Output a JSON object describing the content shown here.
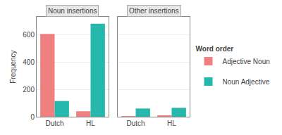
{
  "chart_data": [
    {
      "type": "bar",
      "title": "Noun insertions",
      "categories": [
        "Dutch",
        "HL"
      ],
      "series": [
        {
          "name": "Adjective Noun",
          "color": "#F08080",
          "values": [
            605,
            40
          ]
        },
        {
          "name": "Noun Adjective",
          "color": "#26B8AC",
          "values": [
            115,
            680
          ]
        }
      ],
      "ylabel": "Frequency",
      "ylim": [
        0,
        730
      ],
      "yticks": [
        0,
        200,
        400,
        600
      ],
      "grid": true
    },
    {
      "type": "bar",
      "title": "Other insertions",
      "categories": [
        "Dutch",
        "HL"
      ],
      "series": [
        {
          "name": "Adjective Noun",
          "color": "#F08080",
          "values": [
            3,
            10
          ]
        },
        {
          "name": "Noun Adjective",
          "color": "#26B8AC",
          "values": [
            60,
            65
          ]
        }
      ],
      "ylim": [
        0,
        730
      ],
      "yticks": [
        0,
        200,
        400,
        600
      ],
      "grid": true,
      "tick_labels": "x",
      "legend": "right",
      "legend_title": "Word order"
    }
  ]
}
